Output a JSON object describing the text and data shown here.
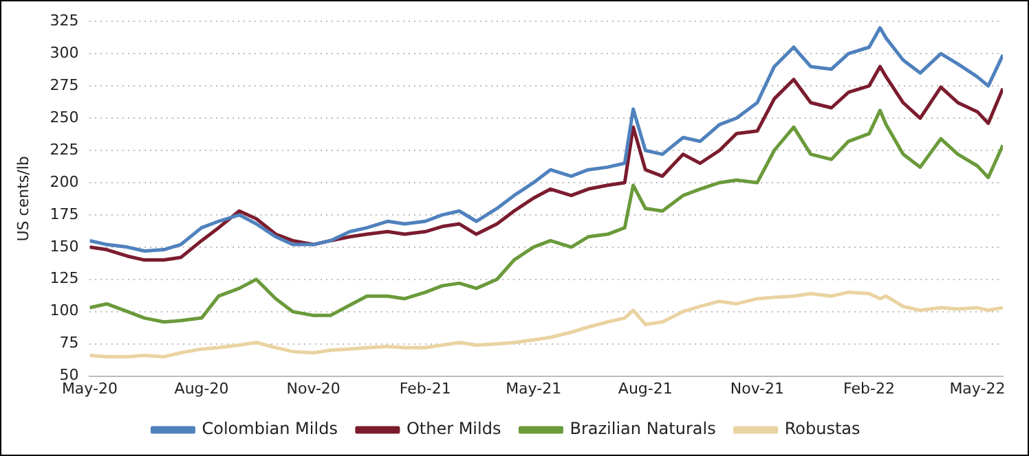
{
  "chart_data": {
    "type": "line",
    "ylabel": "US cents/lb",
    "x": [
      "2020-05-01",
      "2020-05-15",
      "2020-06-01",
      "2020-06-15",
      "2020-07-01",
      "2020-07-15",
      "2020-08-01",
      "2020-08-15",
      "2020-09-01",
      "2020-09-15",
      "2020-10-01",
      "2020-10-15",
      "2020-11-01",
      "2020-11-15",
      "2020-12-01",
      "2020-12-15",
      "2021-01-01",
      "2021-01-15",
      "2021-02-01",
      "2021-02-15",
      "2021-03-01",
      "2021-03-15",
      "2021-04-01",
      "2021-04-15",
      "2021-05-01",
      "2021-05-15",
      "2021-06-01",
      "2021-06-15",
      "2021-07-01",
      "2021-07-15",
      "2021-07-22",
      "2021-08-01",
      "2021-08-15",
      "2021-09-01",
      "2021-09-15",
      "2021-10-01",
      "2021-10-15",
      "2021-11-01",
      "2021-11-15",
      "2021-12-01",
      "2021-12-15",
      "2022-01-01",
      "2022-01-15",
      "2022-02-01",
      "2022-02-10",
      "2022-02-15",
      "2022-03-01",
      "2022-03-15",
      "2022-04-01",
      "2022-04-15",
      "2022-05-01",
      "2022-05-10",
      "2022-05-22"
    ],
    "series": [
      {
        "name": "Colombian Milds",
        "color": "#4f81bd",
        "values": [
          155,
          152,
          150,
          147,
          148,
          152,
          165,
          170,
          175,
          168,
          158,
          152,
          152,
          155,
          162,
          165,
          170,
          168,
          170,
          175,
          178,
          170,
          180,
          190,
          200,
          210,
          205,
          210,
          212,
          215,
          257,
          225,
          222,
          235,
          232,
          245,
          250,
          262,
          290,
          305,
          290,
          288,
          300,
          305,
          320,
          312,
          295,
          285,
          300,
          292,
          282,
          275,
          299
        ]
      },
      {
        "name": "Other Milds",
        "color": "#7b1c2e",
        "values": [
          150,
          148,
          143,
          140,
          140,
          142,
          155,
          165,
          178,
          172,
          160,
          155,
          152,
          155,
          158,
          160,
          162,
          160,
          162,
          166,
          168,
          160,
          168,
          178,
          188,
          195,
          190,
          195,
          198,
          200,
          243,
          210,
          205,
          222,
          215,
          225,
          238,
          240,
          265,
          280,
          262,
          258,
          270,
          275,
          290,
          282,
          262,
          250,
          274,
          262,
          255,
          246,
          273
        ]
      },
      {
        "name": "Brazilian Naturals",
        "color": "#6a9a3a",
        "values": [
          103,
          106,
          100,
          95,
          92,
          93,
          95,
          112,
          118,
          125,
          110,
          100,
          97,
          97,
          105,
          112,
          112,
          110,
          115,
          120,
          122,
          118,
          125,
          140,
          150,
          155,
          150,
          158,
          160,
          165,
          198,
          180,
          178,
          190,
          195,
          200,
          202,
          200,
          225,
          243,
          222,
          218,
          232,
          238,
          256,
          245,
          222,
          212,
          234,
          222,
          213,
          204,
          229
        ]
      },
      {
        "name": "Robustas",
        "color": "#e9d3a1",
        "values": [
          66,
          65,
          65,
          66,
          65,
          68,
          71,
          72,
          74,
          76,
          72,
          69,
          68,
          70,
          71,
          72,
          73,
          72,
          72,
          74,
          76,
          74,
          75,
          76,
          78,
          80,
          84,
          88,
          92,
          95,
          101,
          90,
          92,
          100,
          104,
          108,
          106,
          110,
          111,
          112,
          114,
          112,
          115,
          114,
          110,
          112,
          104,
          101,
          103,
          102,
          103,
          101,
          103
        ]
      }
    ],
    "xlim": [
      "2020-05-01",
      "2022-05-22"
    ],
    "xticks": [
      {
        "value": "2020-05-01",
        "label": "May-20"
      },
      {
        "value": "2020-08-01",
        "label": "Aug-20"
      },
      {
        "value": "2020-11-01",
        "label": "Nov-20"
      },
      {
        "value": "2021-02-01",
        "label": "Feb-21"
      },
      {
        "value": "2021-05-01",
        "label": "May-21"
      },
      {
        "value": "2021-08-01",
        "label": "Aug-21"
      },
      {
        "value": "2021-11-01",
        "label": "Nov-21"
      },
      {
        "value": "2022-02-01",
        "label": "Feb-22"
      },
      {
        "value": "2022-05-01",
        "label": "May-22"
      }
    ],
    "ylim": [
      50,
      325
    ],
    "yticks": [
      50,
      75,
      100,
      125,
      150,
      175,
      200,
      225,
      250,
      275,
      300,
      325
    ],
    "grid": "y",
    "legend": "bottom",
    "marker": "none",
    "line_style": "solid"
  }
}
